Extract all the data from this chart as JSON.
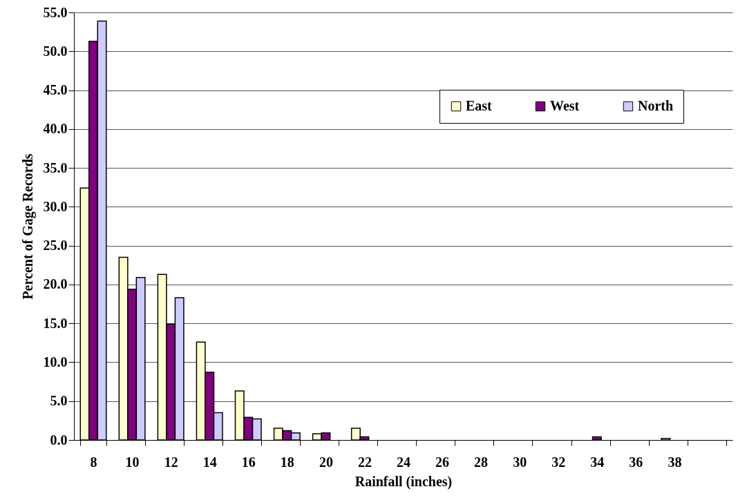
{
  "chart_data": {
    "type": "bar",
    "xlabel": "Rainfall (inches)",
    "ylabel": "Percent of Gage Records",
    "categories": [
      "8",
      "10",
      "12",
      "14",
      "16",
      "18",
      "20",
      "22",
      "24",
      "26",
      "28",
      "30",
      "32",
      "34",
      "36",
      "38",
      null
    ],
    "series": [
      {
        "name": "East",
        "color": "#ffffcc",
        "values": [
          32.4,
          23.5,
          21.3,
          12.6,
          6.3,
          1.5,
          0.8,
          1.5,
          null,
          null,
          null,
          null,
          null,
          null,
          null,
          0.2,
          null
        ]
      },
      {
        "name": "West",
        "color": "#800080",
        "values": [
          51.3,
          19.4,
          14.9,
          8.7,
          2.9,
          1.2,
          0.9,
          0.4,
          null,
          null,
          null,
          null,
          null,
          0.4,
          null,
          null,
          null
        ]
      },
      {
        "name": "North",
        "color": "#ccccff",
        "values": [
          53.9,
          20.9,
          18.3,
          3.5,
          2.7,
          0.9,
          null,
          null,
          null,
          null,
          null,
          null,
          null,
          null,
          null,
          null,
          null
        ]
      }
    ],
    "ylim": [
      0,
      55
    ],
    "yticks": [
      {
        "value": 0,
        "label": "0.0"
      },
      {
        "value": 5,
        "label": "5.0"
      },
      {
        "value": 10,
        "label": "10.0"
      },
      {
        "value": 15,
        "label": "15.0"
      },
      {
        "value": 20,
        "label": "20.0"
      },
      {
        "value": 25,
        "label": "25.0"
      },
      {
        "value": 30,
        "label": "30.0"
      },
      {
        "value": 35,
        "label": "35.0"
      },
      {
        "value": 40,
        "label": "40.0"
      },
      {
        "value": 45,
        "label": "45.0"
      },
      {
        "value": 50,
        "label": "50.0"
      },
      {
        "value": 55,
        "label": "55.0"
      }
    ],
    "grid": "y",
    "legend": "top right"
  }
}
